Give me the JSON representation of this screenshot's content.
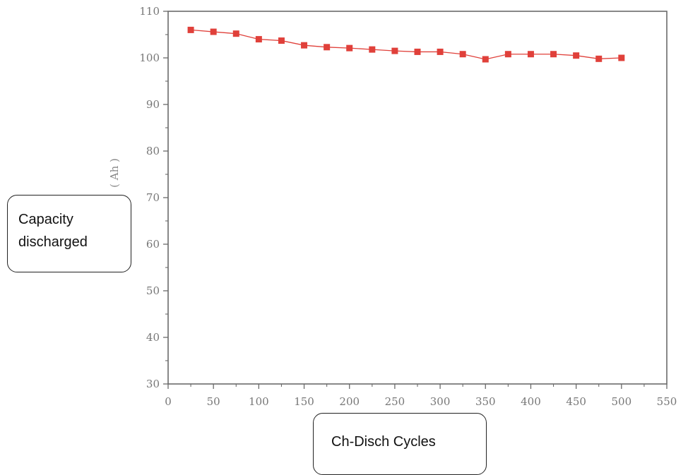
{
  "chart_data": {
    "type": "line",
    "y_unit": "( Ah )",
    "xlabel": "Ch-Disch Cycles",
    "ylabel_lines": [
      "Capacity",
      "discharged"
    ],
    "xlim": [
      0,
      550
    ],
    "ylim": [
      30,
      110
    ],
    "x_ticks": [
      0,
      50,
      100,
      150,
      200,
      250,
      300,
      350,
      400,
      450,
      500,
      550
    ],
    "y_ticks": [
      30,
      40,
      50,
      60,
      70,
      80,
      90,
      100,
      110
    ],
    "grid": false,
    "marker": "square",
    "series": [
      {
        "color": "#e0403a",
        "x": [
          25,
          50,
          75,
          100,
          125,
          150,
          175,
          200,
          225,
          250,
          275,
          300,
          325,
          350,
          375,
          400,
          425,
          450,
          475,
          500
        ],
        "y": [
          106,
          105.6,
          105.2,
          104,
          103.7,
          102.7,
          102.3,
          102.1,
          101.8,
          101.5,
          101.3,
          101.3,
          100.8,
          99.7,
          100.8,
          100.8,
          100.8,
          100.5,
          99.8,
          100
        ]
      }
    ]
  }
}
